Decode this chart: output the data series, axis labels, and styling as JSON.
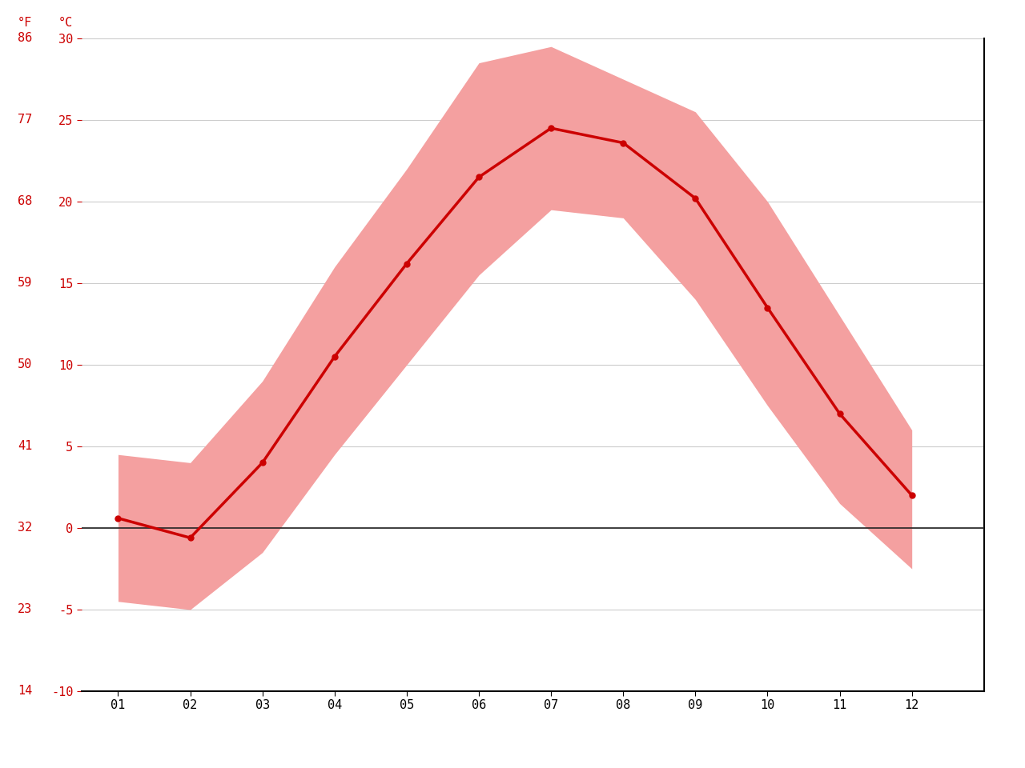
{
  "months": [
    1,
    2,
    3,
    4,
    5,
    6,
    7,
    8,
    9,
    10,
    11,
    12
  ],
  "month_labels": [
    "01",
    "02",
    "03",
    "04",
    "05",
    "06",
    "07",
    "08",
    "09",
    "10",
    "11",
    "12"
  ],
  "avg_temp_c": [
    0.6,
    -0.6,
    4.0,
    10.5,
    16.2,
    21.5,
    24.5,
    23.6,
    20.2,
    13.5,
    7.0,
    2.0
  ],
  "max_temp_c": [
    4.5,
    4.0,
    9.0,
    16.0,
    22.0,
    28.5,
    29.5,
    27.5,
    25.5,
    20.0,
    13.0,
    6.0
  ],
  "min_temp_c": [
    -4.5,
    -5.0,
    -1.5,
    4.5,
    10.0,
    15.5,
    19.5,
    19.0,
    14.0,
    7.5,
    1.5,
    -2.5
  ],
  "yticks_c": [
    -10,
    -5,
    0,
    5,
    10,
    15,
    20,
    25,
    30
  ],
  "yticks_f": [
    14,
    23,
    32,
    41,
    50,
    59,
    68,
    77,
    86
  ],
  "ylim": [
    -10,
    30
  ],
  "xlim_start": 0.5,
  "xlim_end": 13.0,
  "line_color": "#cc0000",
  "fill_color": "#f4a0a0",
  "zero_line_color": "#222222",
  "grid_color": "#cccccc",
  "tick_color": "#cc0000",
  "bg_color": "#ffffff",
  "line_width": 2.5,
  "marker_size": 5,
  "label_F": "°F",
  "label_C": "°C"
}
